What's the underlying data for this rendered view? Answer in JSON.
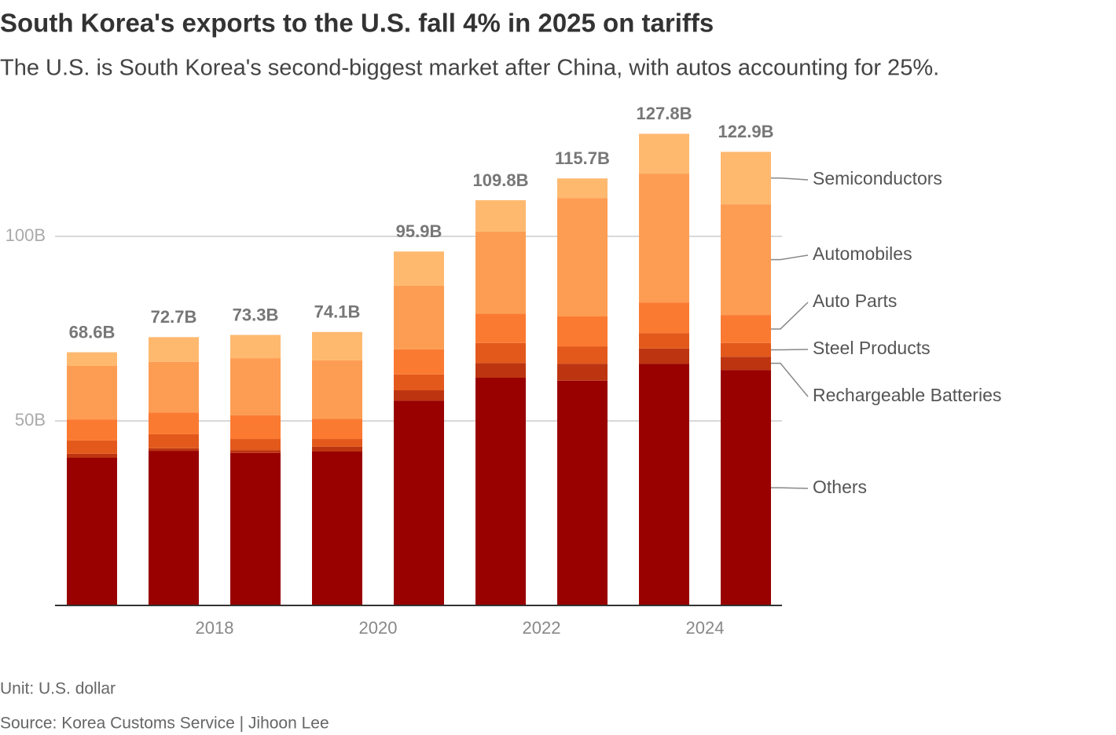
{
  "chart_data": {
    "type": "stacked_bar",
    "title": "South Korea's exports to the U.S. fall 4% in 2025 on tariffs",
    "subtitle": "The U.S. is South Korea's second-biggest market after China, with autos accounting for 25%.",
    "categories": [
      null,
      "2018",
      null,
      "2020",
      null,
      "2022",
      null,
      "2024",
      null
    ],
    "series": [
      {
        "name": "Others",
        "color": "#990000",
        "values": [
          40.0,
          41.9,
          41.3,
          41.7,
          55.5,
          61.7,
          60.9,
          65.5,
          63.8
        ]
      },
      {
        "name": "Rechargeable Batteries",
        "color": "#bd3510",
        "values": [
          1.1,
          0.7,
          0.8,
          1.3,
          2.8,
          4.0,
          4.6,
          4.1,
          3.6
        ]
      },
      {
        "name": "Steel Products",
        "color": "#e3591c",
        "values": [
          3.6,
          3.8,
          3.0,
          2.1,
          4.3,
          5.4,
          4.7,
          4.2,
          3.7
        ]
      },
      {
        "name": "Auto Parts",
        "color": "#fb7a31",
        "values": [
          5.7,
          5.9,
          6.4,
          5.5,
          6.8,
          8.0,
          8.1,
          8.3,
          7.6
        ]
      },
      {
        "name": "Automobiles",
        "color": "#fd9d53",
        "values": [
          14.5,
          13.7,
          15.5,
          15.8,
          17.2,
          22.2,
          32.1,
          34.9,
          30.0
        ]
      },
      {
        "name": "Semiconductors",
        "color": "#feb96f",
        "values": [
          3.7,
          6.7,
          6.3,
          7.7,
          9.3,
          8.5,
          5.3,
          10.8,
          14.2
        ]
      }
    ],
    "totals": {
      "values": [
        68.6,
        72.7,
        73.3,
        74.1,
        95.9,
        109.8,
        115.7,
        127.8,
        122.9
      ],
      "value_labels": [
        "68.6B",
        "72.7B",
        "73.3B",
        "74.1B",
        "95.9B",
        "109.8B",
        "115.7B",
        "127.8B",
        "122.9B"
      ]
    },
    "ylim": [
      0,
      135
    ],
    "yticks": [
      {
        "value": 50,
        "label": "50B"
      },
      {
        "value": 100,
        "label": "100B"
      }
    ],
    "grid": true,
    "notes": [
      "Unit: U.S. dollar",
      "Source: Korea Customs Service | Jihoon Lee"
    ]
  }
}
